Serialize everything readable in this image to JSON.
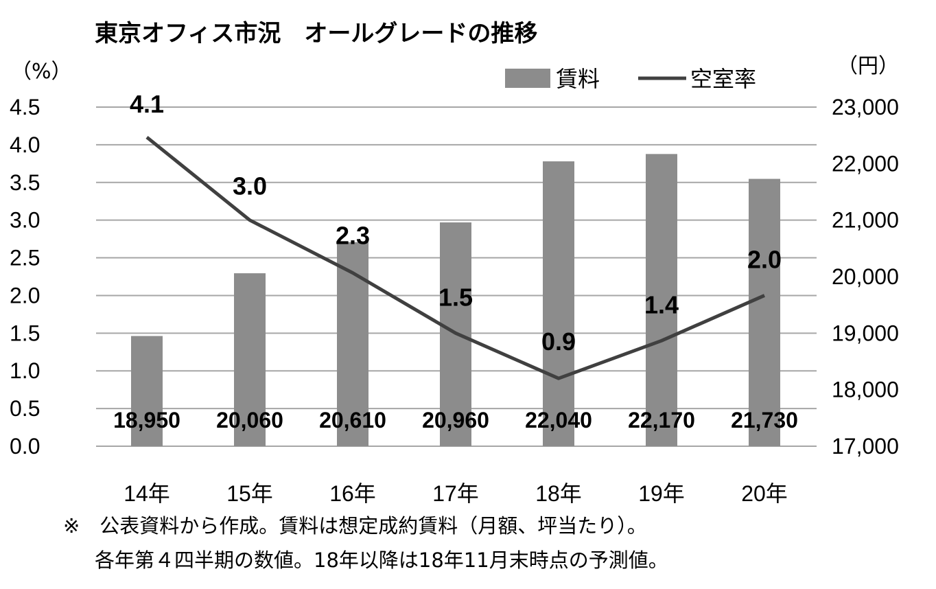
{
  "chart_data": {
    "type": "bar",
    "title": "東京オフィス市況　オールグレードの推移",
    "categories": [
      "14年",
      "15年",
      "16年",
      "17年",
      "18年",
      "19年",
      "20年"
    ],
    "left_axis": {
      "unit": "（%）",
      "range": [
        0,
        4.5
      ],
      "ticks": [
        "0.0",
        "0.5",
        "1.0",
        "1.5",
        "2.0",
        "2.5",
        "3.0",
        "3.5",
        "4.0",
        "4.5"
      ]
    },
    "right_axis": {
      "unit": "（円）",
      "range": [
        17000,
        23000
      ],
      "ticks": [
        "17,000",
        "18,000",
        "19,000",
        "20,000",
        "21,000",
        "22,000",
        "23,000"
      ]
    },
    "series": [
      {
        "name": "賃料",
        "kind": "bar",
        "axis": "right",
        "color": "#8c8c8c",
        "values": [
          18950,
          20060,
          20610,
          20960,
          22040,
          22170,
          21730
        ],
        "labels": [
          "18,950",
          "20,060",
          "20,610",
          "20,960",
          "22,040",
          "22,170",
          "21,730"
        ]
      },
      {
        "name": "空室率",
        "kind": "line",
        "axis": "left",
        "color": "#404040",
        "values": [
          4.1,
          3.0,
          2.3,
          1.5,
          0.9,
          1.4,
          2.0
        ],
        "labels": [
          "4.1",
          "3.0",
          "2.3",
          "1.5",
          "0.9",
          "1.4",
          "2.0"
        ]
      }
    ],
    "grid": true,
    "legend_position": "top-right"
  },
  "notes": {
    "line1": "※　公表資料から作成。賃料は想定成約賃料（月額、坪当たり）。",
    "line2": "各年第４四半期の数値。18年以降は18年11月末時点の予測値。"
  }
}
